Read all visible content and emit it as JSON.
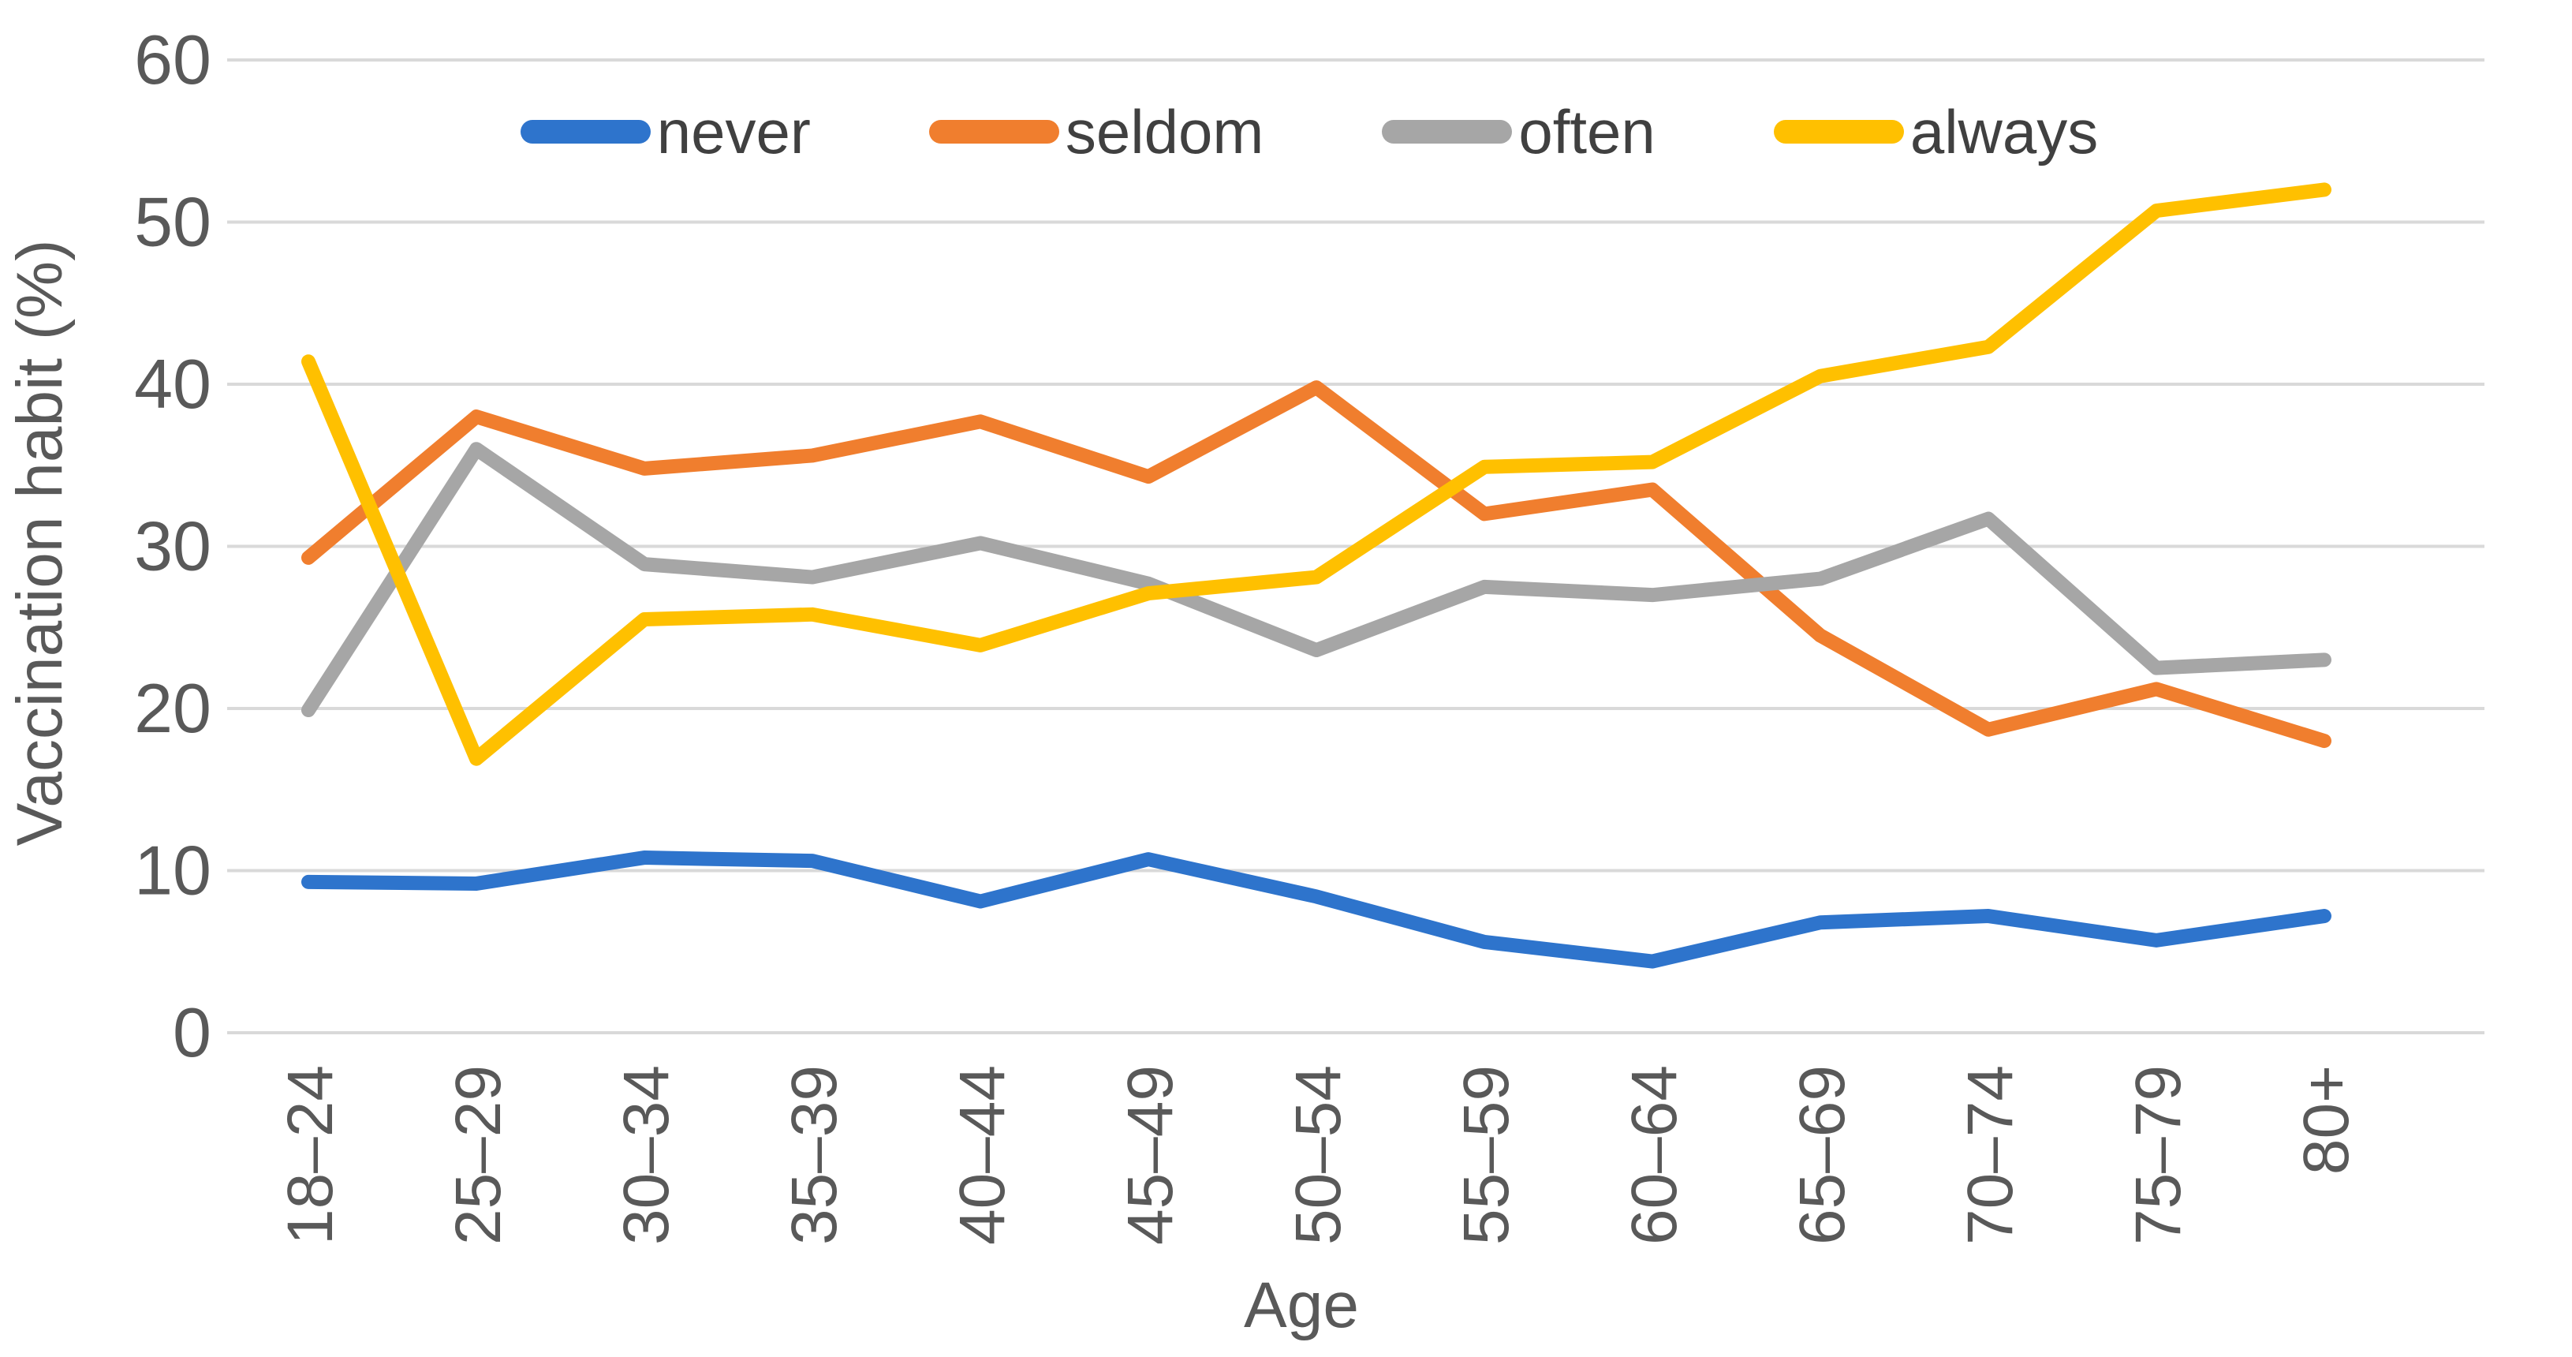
{
  "chart_data": {
    "type": "line",
    "title": "",
    "xlabel": "Age",
    "ylabel": "Vaccination habit (%)",
    "categories": [
      "18–24",
      "25–29",
      "30–34",
      "35–39",
      "40–44",
      "45–49",
      "50–54",
      "55–59",
      "60–64",
      "65–69",
      "70–74",
      "75–79",
      "80+"
    ],
    "y_ticks": [
      0,
      10,
      20,
      30,
      40,
      50,
      60
    ],
    "ylim": [
      0,
      60
    ],
    "grid": true,
    "legend_position": "top",
    "series": [
      {
        "name": "never",
        "color": "#2e74cc",
        "values": [
          9.3,
          9.2,
          10.8,
          10.6,
          8.1,
          10.7,
          8.4,
          5.6,
          4.4,
          6.8,
          7.2,
          5.7,
          7.2
        ]
      },
      {
        "name": "seldom",
        "color": "#f07e2e",
        "values": [
          29.3,
          38.0,
          34.8,
          35.6,
          37.7,
          34.3,
          39.8,
          32.0,
          33.5,
          24.5,
          18.7,
          21.2,
          18.0
        ]
      },
      {
        "name": "often",
        "color": "#a6a6a6",
        "values": [
          19.9,
          36.0,
          28.9,
          28.1,
          30.2,
          27.7,
          23.6,
          27.5,
          27.0,
          28.0,
          31.7,
          22.5,
          23.0
        ]
      },
      {
        "name": "always",
        "color": "#ffc000",
        "values": [
          41.4,
          16.9,
          25.5,
          25.8,
          23.9,
          27.1,
          28.1,
          34.9,
          35.2,
          40.5,
          42.3,
          50.7,
          52.0
        ]
      }
    ],
    "colors": {
      "gridline": "#d9d9d9",
      "tick_text": "#595959",
      "legend_text": "#404040",
      "background": "#ffffff"
    }
  }
}
